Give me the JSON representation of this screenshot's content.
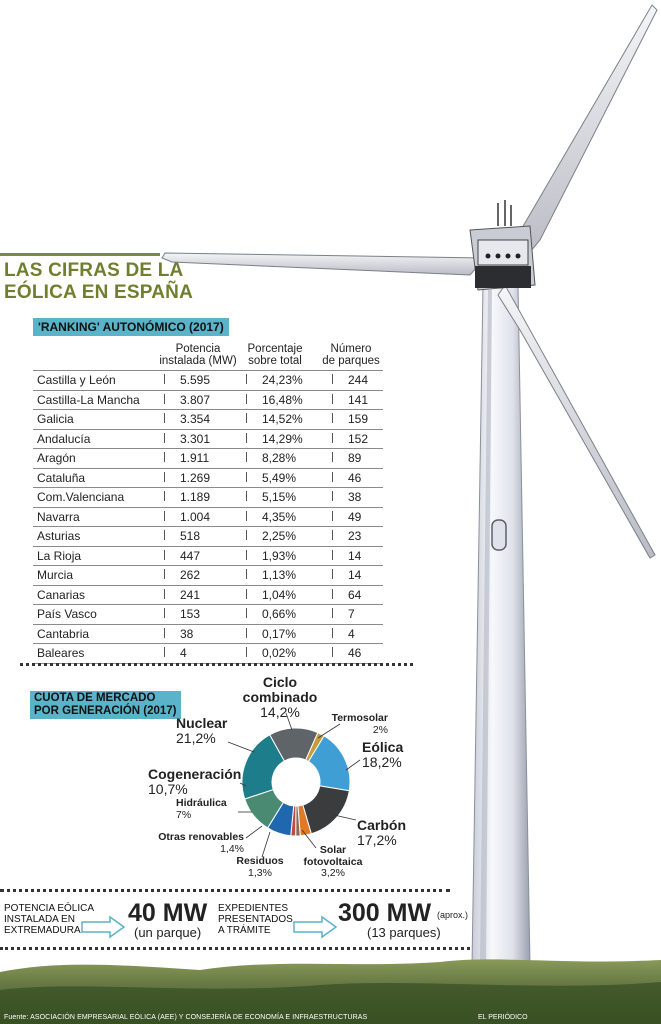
{
  "title": {
    "line1": "LAS CIFRAS DE LA",
    "line2": "EÓLICA EN ESPAÑA"
  },
  "ranking": {
    "label": "'RANKING' AUTONÓMICO (2017)",
    "headers": [
      "Potencia instalada (MW)",
      "Porcentaje sobre total",
      "Número de parques"
    ],
    "header_lines": [
      [
        "Potencia",
        "instalada (MW)"
      ],
      [
        "Porcentaje",
        "sobre total"
      ],
      [
        "Número",
        "de parques"
      ]
    ]
  },
  "chart_data": [
    {
      "type": "table",
      "title": "'RANKING' AUTONÓMICO (2017)",
      "columns": [
        "",
        "Potencia instalada (MW)",
        "Porcentaje sobre total",
        "Número de parques"
      ],
      "rows": [
        [
          "Castilla y León",
          "5.595",
          "24,23%",
          "244"
        ],
        [
          "Castilla-La Mancha",
          "3.807",
          "16,48%",
          "141"
        ],
        [
          "Galicia",
          "3.354",
          "14,52%",
          "159"
        ],
        [
          "Andalucía",
          "3.301",
          "14,29%",
          "152"
        ],
        [
          "Aragón",
          "1.911",
          "8,28%",
          "89"
        ],
        [
          "Cataluña",
          "1.269",
          "5,49%",
          "46"
        ],
        [
          "Com.Valenciana",
          "1.189",
          "5,15%",
          "38"
        ],
        [
          "Navarra",
          "1.004",
          "4,35%",
          "49"
        ],
        [
          "Asturias",
          "518",
          "2,25%",
          "23"
        ],
        [
          "La Rioja",
          "447",
          "1,93%",
          "14"
        ],
        [
          "Murcia",
          "262",
          "1,13%",
          "14"
        ],
        [
          "Canarias",
          "241",
          "1,04%",
          "64"
        ],
        [
          "País Vasco",
          "153",
          "0,66%",
          "7"
        ],
        [
          "Cantabria",
          "38",
          "0,17%",
          "4"
        ],
        [
          "Baleares",
          "4",
          "0,02%",
          "46"
        ]
      ]
    },
    {
      "type": "pie",
      "title": "CUOTA DE MERCADO POR GENERACIÓN (2017)",
      "slices": [
        {
          "name": "Ciclo combinado",
          "value": 14.2,
          "label": "14,2%",
          "color": "#5f6468"
        },
        {
          "name": "Termosolar",
          "value": 2.0,
          "label": "2%",
          "color": "#c79a3a"
        },
        {
          "name": "Eólica",
          "value": 18.2,
          "label": "18,2%",
          "color": "#3f9fd4"
        },
        {
          "name": "Carbón",
          "value": 17.2,
          "label": "17,2%",
          "color": "#3a3c3e"
        },
        {
          "name": "Solar fotovoltaica",
          "value": 3.2,
          "label": "3,2%",
          "color": "#e07a2a"
        },
        {
          "name": "Residuos",
          "value": 1.3,
          "label": "1,3%",
          "color": "#8a6b52"
        },
        {
          "name": "Otras renovables",
          "value": 1.4,
          "label": "1,4%",
          "color": "#c04a4a"
        },
        {
          "name": "Hidráulica",
          "value": 7.0,
          "label": "7%",
          "color": "#1f68b0"
        },
        {
          "name": "Cogeneración",
          "value": 10.7,
          "label": "10,7%",
          "color": "#4a8a72"
        },
        {
          "name": "Nuclear",
          "value": 21.2,
          "label": "21,2%",
          "color": "#1e7d8a"
        }
      ]
    }
  ],
  "cuota": {
    "line1": "CUOTA DE MERCADO",
    "line2": "POR GENERACIÓN (2017)"
  },
  "pie_labels": {
    "ciclo": {
      "l1": "Ciclo",
      "l2": "combinado",
      "v": "14,2%"
    },
    "termosolar": {
      "l1": "Termosolar",
      "v": "2%"
    },
    "eolica": {
      "l1": "Eólica",
      "v": "18,2%"
    },
    "carbon": {
      "l1": "Carbón",
      "v": "17,2%"
    },
    "solar": {
      "l1": "Solar",
      "l2": "fotovoltaica",
      "v": "3,2%"
    },
    "residuos": {
      "l1": "Residuos",
      "v": "1,3%"
    },
    "otras": {
      "l1": "Otras renovables",
      "v": "1,4%"
    },
    "hidraulica": {
      "l1": "Hidráulica",
      "v": "7%"
    },
    "cogeneracion": {
      "l1": "Cogeneración",
      "v": "10,7%"
    },
    "nuclear": {
      "l1": "Nuclear",
      "v": "21,2%"
    }
  },
  "bottom": {
    "left_text": [
      "POTENCIA EÓLICA",
      "INSTALADA EN",
      "EXTREMADURA"
    ],
    "left_value": "40 MW",
    "left_sub": "(un parque)",
    "mid_text": [
      "EXPEDIENTES",
      "PRESENTADOS",
      "A TRÁMITE"
    ],
    "right_value": "300 MW",
    "right_suffix": "(aprox.)",
    "right_sub": "(13 parques)"
  },
  "footer": {
    "source": "Fuente: ASOCIACIÓN EMPRESARIAL EÓLICA (AEE) Y CONSEJERÍA DE ECONOMÍA E INFRAESTRUCTURAS",
    "credit": "EL PERIÓDICO"
  },
  "colors": {
    "accent": "#5ab3c9",
    "title": "#6f7f2f",
    "tower": "#eef0f4"
  }
}
